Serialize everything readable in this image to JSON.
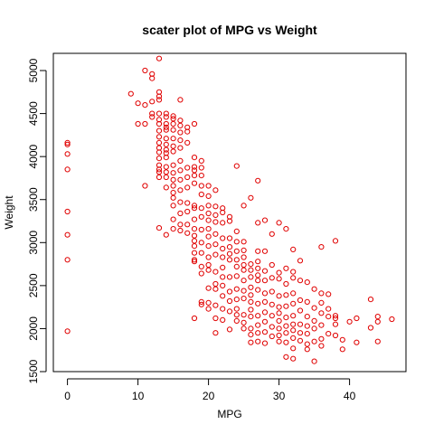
{
  "chart_data": {
    "type": "scatter",
    "title": "scater plot of MPG vs Weight",
    "xlabel": "MPG",
    "ylabel": "Weight",
    "xlim": [
      -2,
      48
    ],
    "ylim": [
      1500,
      5200
    ],
    "xticks": [
      0,
      10,
      20,
      30,
      40
    ],
    "yticks": [
      1500,
      2000,
      2500,
      3000,
      3500,
      4000,
      4500,
      5000
    ],
    "grid": false,
    "legend": "none",
    "point_color": "#e00000",
    "series": [
      {
        "points": [
          [
            0,
            4160
          ],
          [
            0,
            4140
          ],
          [
            0,
            4030
          ],
          [
            0,
            3850
          ],
          [
            0,
            3360
          ],
          [
            0,
            3090
          ],
          [
            0,
            2800
          ],
          [
            0,
            1970
          ],
          [
            9,
            4730
          ],
          [
            10,
            4620
          ],
          [
            10,
            4380
          ],
          [
            11,
            4600
          ],
          [
            11,
            4380
          ],
          [
            11,
            3660
          ],
          [
            11,
            5000
          ],
          [
            12,
            4960
          ],
          [
            12,
            4910
          ],
          [
            12,
            4500
          ],
          [
            12,
            4640
          ],
          [
            12,
            4460
          ],
          [
            13,
            5140
          ],
          [
            13,
            4750
          ],
          [
            13,
            4700
          ],
          [
            13,
            4660
          ],
          [
            13,
            4500
          ],
          [
            13,
            4430
          ],
          [
            13,
            4380
          ],
          [
            13,
            4300
          ],
          [
            13,
            4230
          ],
          [
            13,
            4160
          ],
          [
            13,
            4100
          ],
          [
            13,
            4050
          ],
          [
            13,
            3980
          ],
          [
            13,
            3900
          ],
          [
            13,
            3850
          ],
          [
            13,
            3820
          ],
          [
            13,
            3760
          ],
          [
            13,
            3170
          ],
          [
            14,
            4500
          ],
          [
            14,
            4460
          ],
          [
            14,
            4380
          ],
          [
            14,
            4340
          ],
          [
            14,
            4310
          ],
          [
            14,
            4210
          ],
          [
            14,
            4140
          ],
          [
            14,
            4080
          ],
          [
            14,
            4040
          ],
          [
            14,
            3990
          ],
          [
            14,
            3880
          ],
          [
            14,
            3820
          ],
          [
            14,
            3760
          ],
          [
            14,
            3640
          ],
          [
            14,
            3090
          ],
          [
            15,
            4470
          ],
          [
            15,
            4440
          ],
          [
            15,
            4380
          ],
          [
            15,
            4310
          ],
          [
            15,
            4210
          ],
          [
            15,
            4120
          ],
          [
            15,
            4060
          ],
          [
            15,
            3900
          ],
          [
            15,
            3810
          ],
          [
            15,
            3730
          ],
          [
            15,
            3660
          ],
          [
            15,
            3580
          ],
          [
            15,
            3520
          ],
          [
            15,
            3430
          ],
          [
            15,
            3270
          ],
          [
            15,
            3160
          ],
          [
            16,
            4660
          ],
          [
            16,
            4420
          ],
          [
            16,
            4360
          ],
          [
            16,
            4280
          ],
          [
            16,
            4190
          ],
          [
            16,
            4100
          ],
          [
            16,
            3950
          ],
          [
            16,
            3840
          ],
          [
            16,
            3730
          ],
          [
            16,
            3610
          ],
          [
            16,
            3470
          ],
          [
            16,
            3340
          ],
          [
            16,
            3210
          ],
          [
            16,
            3140
          ],
          [
            17,
            4340
          ],
          [
            17,
            4290
          ],
          [
            17,
            4160
          ],
          [
            17,
            3870
          ],
          [
            17,
            3760
          ],
          [
            17,
            3640
          ],
          [
            17,
            3460
          ],
          [
            17,
            3360
          ],
          [
            17,
            3210
          ],
          [
            17,
            3110
          ],
          [
            18,
            4380
          ],
          [
            18,
            3990
          ],
          [
            18,
            3880
          ],
          [
            18,
            3840
          ],
          [
            18,
            3780
          ],
          [
            18,
            3690
          ],
          [
            18,
            3430
          ],
          [
            18,
            3400
          ],
          [
            18,
            3270
          ],
          [
            18,
            3160
          ],
          [
            18,
            3080
          ],
          [
            18,
            3020
          ],
          [
            18,
            2960
          ],
          [
            18,
            2880
          ],
          [
            18,
            2800
          ],
          [
            18,
            2780
          ],
          [
            18,
            2120
          ],
          [
            19,
            3950
          ],
          [
            19,
            3870
          ],
          [
            19,
            3780
          ],
          [
            19,
            3660
          ],
          [
            19,
            3560
          ],
          [
            19,
            3400
          ],
          [
            19,
            3300
          ],
          [
            19,
            3150
          ],
          [
            19,
            3000
          ],
          [
            19,
            2880
          ],
          [
            19,
            2720
          ],
          [
            19,
            2640
          ],
          [
            19,
            2310
          ],
          [
            19,
            2280
          ],
          [
            20,
            3660
          ],
          [
            20,
            3540
          ],
          [
            20,
            3430
          ],
          [
            20,
            3340
          ],
          [
            20,
            3260
          ],
          [
            20,
            3160
          ],
          [
            20,
            3070
          ],
          [
            20,
            2960
          ],
          [
            20,
            2830
          ],
          [
            20,
            2740
          ],
          [
            20,
            2680
          ],
          [
            20,
            2470
          ],
          [
            20,
            2300
          ],
          [
            20,
            2230
          ],
          [
            21,
            3610
          ],
          [
            21,
            3420
          ],
          [
            21,
            3320
          ],
          [
            21,
            3240
          ],
          [
            21,
            3100
          ],
          [
            21,
            2980
          ],
          [
            21,
            2860
          ],
          [
            21,
            2660
          ],
          [
            21,
            2520
          ],
          [
            21,
            2460
          ],
          [
            21,
            2270
          ],
          [
            21,
            2120
          ],
          [
            21,
            1950
          ],
          [
            22,
            3400
          ],
          [
            22,
            3350
          ],
          [
            22,
            3230
          ],
          [
            22,
            3050
          ],
          [
            22,
            2930
          ],
          [
            22,
            2830
          ],
          [
            22,
            2710
          ],
          [
            22,
            2600
          ],
          [
            22,
            2500
          ],
          [
            22,
            2380
          ],
          [
            22,
            2230
          ],
          [
            22,
            2100
          ],
          [
            23,
            3300
          ],
          [
            23,
            3250
          ],
          [
            23,
            3050
          ],
          [
            23,
            2950
          ],
          [
            23,
            2870
          ],
          [
            23,
            2800
          ],
          [
            23,
            2600
          ],
          [
            23,
            2430
          ],
          [
            23,
            2320
          ],
          [
            23,
            2200
          ],
          [
            23,
            1990
          ],
          [
            24,
            3890
          ],
          [
            24,
            3130
          ],
          [
            24,
            3010
          ],
          [
            24,
            2900
          ],
          [
            24,
            2800
          ],
          [
            24,
            2720
          ],
          [
            24,
            2610
          ],
          [
            24,
            2460
          ],
          [
            24,
            2340
          ],
          [
            24,
            2230
          ],
          [
            24,
            2160
          ],
          [
            24,
            2090
          ],
          [
            25,
            3430
          ],
          [
            25,
            3010
          ],
          [
            25,
            2910
          ],
          [
            25,
            2830
          ],
          [
            25,
            2740
          ],
          [
            25,
            2680
          ],
          [
            25,
            2560
          ],
          [
            25,
            2440
          ],
          [
            25,
            2350
          ],
          [
            25,
            2160
          ],
          [
            25,
            2070
          ],
          [
            25,
            2000
          ],
          [
            26,
            3520
          ],
          [
            26,
            2750
          ],
          [
            26,
            2680
          ],
          [
            26,
            2600
          ],
          [
            26,
            2480
          ],
          [
            26,
            2390
          ],
          [
            26,
            2310
          ],
          [
            26,
            2220
          ],
          [
            26,
            2140
          ],
          [
            26,
            2000
          ],
          [
            26,
            1930
          ],
          [
            26,
            1840
          ],
          [
            27,
            3720
          ],
          [
            27,
            3230
          ],
          [
            27,
            2900
          ],
          [
            27,
            2780
          ],
          [
            27,
            2700
          ],
          [
            27,
            2620
          ],
          [
            27,
            2560
          ],
          [
            27,
            2450
          ],
          [
            27,
            2290
          ],
          [
            27,
            2150
          ],
          [
            27,
            2040
          ],
          [
            27,
            1950
          ],
          [
            27,
            1850
          ],
          [
            28,
            3260
          ],
          [
            28,
            2900
          ],
          [
            28,
            2670
          ],
          [
            28,
            2560
          ],
          [
            28,
            2410
          ],
          [
            28,
            2310
          ],
          [
            28,
            2190
          ],
          [
            28,
            2080
          ],
          [
            28,
            1960
          ],
          [
            28,
            1830
          ],
          [
            29,
            3100
          ],
          [
            29,
            2740
          ],
          [
            29,
            2590
          ],
          [
            29,
            2430
          ],
          [
            29,
            2280
          ],
          [
            29,
            2150
          ],
          [
            29,
            2020
          ],
          [
            29,
            1910
          ],
          [
            30,
            3230
          ],
          [
            30,
            2650
          ],
          [
            30,
            2580
          ],
          [
            30,
            2380
          ],
          [
            30,
            2250
          ],
          [
            30,
            2180
          ],
          [
            30,
            2090
          ],
          [
            30,
            2000
          ],
          [
            30,
            1920
          ],
          [
            30,
            1850
          ],
          [
            31,
            3160
          ],
          [
            31,
            2700
          ],
          [
            31,
            2520
          ],
          [
            31,
            2390
          ],
          [
            31,
            2260
          ],
          [
            31,
            2130
          ],
          [
            31,
            2030
          ],
          [
            31,
            1950
          ],
          [
            31,
            1840
          ],
          [
            31,
            1670
          ],
          [
            32,
            2920
          ],
          [
            32,
            2660
          ],
          [
            32,
            2590
          ],
          [
            32,
            2410
          ],
          [
            32,
            2290
          ],
          [
            32,
            2150
          ],
          [
            32,
            2050
          ],
          [
            32,
            1980
          ],
          [
            32,
            1890
          ],
          [
            32,
            1770
          ],
          [
            32,
            1650
          ],
          [
            33,
            2790
          ],
          [
            33,
            2560
          ],
          [
            33,
            2330
          ],
          [
            33,
            2210
          ],
          [
            33,
            2050
          ],
          [
            33,
            1950
          ],
          [
            33,
            1860
          ],
          [
            34,
            2540
          ],
          [
            34,
            2310
          ],
          [
            34,
            2140
          ],
          [
            34,
            2030
          ],
          [
            34,
            1940
          ],
          [
            34,
            1820
          ],
          [
            34,
            1760
          ],
          [
            35,
            2460
          ],
          [
            35,
            2240
          ],
          [
            35,
            2090
          ],
          [
            35,
            2000
          ],
          [
            35,
            1850
          ],
          [
            35,
            1620
          ],
          [
            36,
            2950
          ],
          [
            36,
            2410
          ],
          [
            36,
            2300
          ],
          [
            36,
            2180
          ],
          [
            36,
            2040
          ],
          [
            36,
            1880
          ],
          [
            36,
            1800
          ],
          [
            37,
            2400
          ],
          [
            37,
            2230
          ],
          [
            37,
            2140
          ],
          [
            37,
            1940
          ],
          [
            38,
            3020
          ],
          [
            38,
            2150
          ],
          [
            38,
            2120
          ],
          [
            38,
            2050
          ],
          [
            38,
            1920
          ],
          [
            39,
            1870
          ],
          [
            39,
            1760
          ],
          [
            40,
            2080
          ],
          [
            41,
            2120
          ],
          [
            41,
            1840
          ],
          [
            43,
            2340
          ],
          [
            43,
            2010
          ],
          [
            44,
            2140
          ],
          [
            44,
            2080
          ],
          [
            44,
            1850
          ],
          [
            46,
            2110
          ]
        ]
      }
    ]
  }
}
